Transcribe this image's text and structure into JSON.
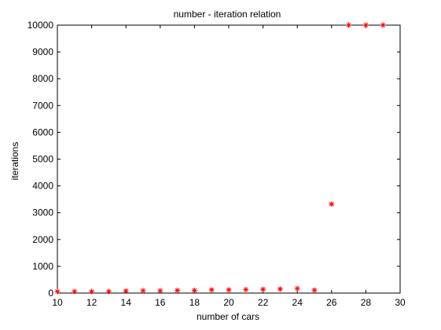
{
  "chart_data": {
    "type": "scatter",
    "title": "number - iteration relation",
    "xlabel": "number of cars",
    "ylabel": "iterations",
    "xlim": [
      10,
      30
    ],
    "ylim": [
      0,
      10000
    ],
    "x_ticks": [
      10,
      12,
      14,
      16,
      18,
      20,
      22,
      24,
      26,
      28,
      30
    ],
    "y_ticks": [
      0,
      1000,
      2000,
      3000,
      4000,
      5000,
      6000,
      7000,
      8000,
      9000,
      10000
    ],
    "marker": "*",
    "marker_color": "#ff0000",
    "grid": false,
    "series": [
      {
        "x": [
          10,
          11,
          12,
          13,
          14,
          15,
          16,
          17,
          18,
          19,
          20,
          21,
          22,
          23,
          24,
          25,
          26,
          27,
          28,
          29
        ],
        "y": [
          60,
          60,
          60,
          60,
          80,
          90,
          90,
          100,
          100,
          120,
          120,
          130,
          140,
          150,
          170,
          110,
          3320,
          10000,
          10000,
          10000
        ]
      }
    ]
  }
}
